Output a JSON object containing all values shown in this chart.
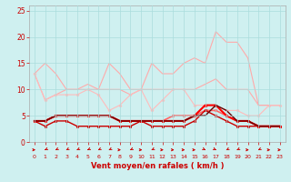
{
  "x": [
    0,
    1,
    2,
    3,
    4,
    5,
    6,
    7,
    8,
    9,
    10,
    11,
    12,
    13,
    14,
    15,
    16,
    17,
    18,
    19,
    20,
    21,
    22,
    23
  ],
  "series": [
    {
      "color": "#ffaaaa",
      "linewidth": 0.8,
      "marker": null,
      "markersize": 2,
      "y": [
        13,
        15,
        13,
        10,
        10,
        11,
        10,
        15,
        13,
        10,
        10,
        15,
        13,
        13,
        15,
        16,
        15,
        21,
        19,
        19,
        16,
        7,
        7,
        7
      ]
    },
    {
      "color": "#ffaaaa",
      "linewidth": 0.8,
      "marker": null,
      "markersize": 2,
      "y": [
        13,
        8,
        9,
        10,
        10,
        10,
        10,
        10,
        10,
        9,
        10,
        10,
        10,
        10,
        10,
        10,
        11,
        12,
        10,
        10,
        10,
        7,
        7,
        7
      ]
    },
    {
      "color": "#ffbbbb",
      "linewidth": 0.8,
      "marker": "D",
      "markersize": 1.5,
      "y": [
        13,
        8,
        9,
        9,
        9,
        10,
        9,
        6,
        7,
        9,
        10,
        6,
        8,
        10,
        10,
        7,
        7,
        7,
        6,
        6,
        5,
        5,
        7,
        7
      ]
    },
    {
      "color": "#ff6666",
      "linewidth": 1.2,
      "marker": "s",
      "markersize": 2,
      "y": [
        4,
        4,
        5,
        5,
        5,
        5,
        5,
        5,
        4,
        4,
        4,
        4,
        4,
        5,
        5,
        5,
        6,
        6,
        5,
        4,
        4,
        3,
        3,
        3
      ]
    },
    {
      "color": "#cc0000",
      "linewidth": 1.0,
      "marker": "s",
      "markersize": 2,
      "y": [
        4,
        3,
        4,
        4,
        3,
        3,
        3,
        3,
        3,
        3,
        4,
        3,
        3,
        3,
        3,
        4,
        6,
        5,
        4,
        3,
        3,
        3,
        3,
        3
      ]
    },
    {
      "color": "#ff0000",
      "linewidth": 1.5,
      "marker": "s",
      "markersize": 2,
      "y": [
        4,
        4,
        5,
        5,
        5,
        5,
        5,
        5,
        4,
        4,
        4,
        4,
        4,
        4,
        4,
        5,
        7,
        7,
        5,
        4,
        4,
        3,
        3,
        3
      ]
    },
    {
      "color": "#660000",
      "linewidth": 1.0,
      "marker": null,
      "markersize": 2,
      "y": [
        4,
        4,
        5,
        5,
        5,
        5,
        5,
        5,
        4,
        4,
        4,
        4,
        4,
        4,
        4,
        5,
        5,
        7,
        6,
        4,
        4,
        3,
        3,
        3
      ]
    }
  ],
  "xlabel": "Vent moyen/en rafales ( km/h )",
  "xlim": [
    -0.5,
    23.5
  ],
  "ylim": [
    0,
    26
  ],
  "yticks": [
    0,
    5,
    10,
    15,
    20,
    25
  ],
  "xticks": [
    0,
    1,
    2,
    3,
    4,
    5,
    6,
    7,
    8,
    9,
    10,
    11,
    12,
    13,
    14,
    15,
    16,
    17,
    18,
    19,
    20,
    21,
    22,
    23
  ],
  "bg_color": "#cff0f0",
  "grid_color": "#aadddd",
  "tick_color": "#cc0000",
  "label_color": "#cc0000",
  "axis_color": "#aaaaaa",
  "arrow_angles": [
    90,
    315,
    315,
    315,
    315,
    315,
    315,
    315,
    90,
    315,
    90,
    315,
    90,
    90,
    90,
    90,
    45,
    45,
    315,
    315,
    90,
    315,
    90,
    90
  ]
}
